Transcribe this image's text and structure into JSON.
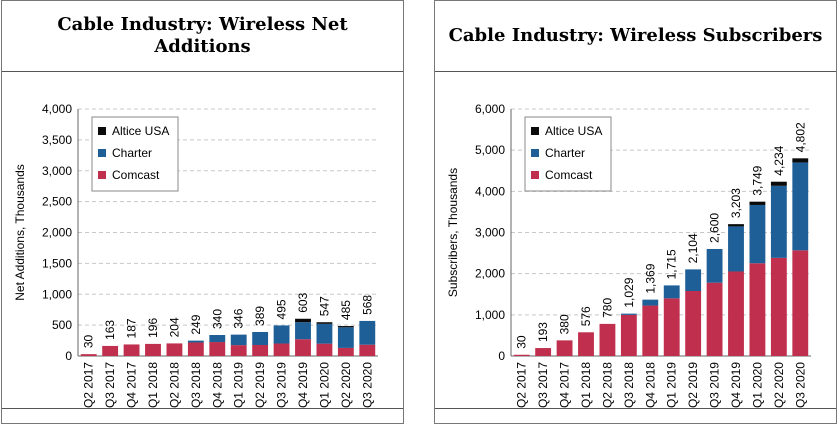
{
  "colors": {
    "altice": "#0a0a0a",
    "charter": "#1f5f97",
    "comcast": "#c0304e",
    "grid": "#c8c8c8"
  },
  "chart_data": [
    {
      "type": "bar",
      "stacked": true,
      "title": "Cable Industry: Wireless Net Additions",
      "ylabel": "Net Additions, Thousands",
      "ylim": [
        0,
        4000
      ],
      "yticks": [
        "0",
        "500",
        "1,000",
        "1,500",
        "2,000",
        "2,500",
        "3,000",
        "3,500",
        "4,000"
      ],
      "grid": true,
      "legend_position": "top-left",
      "categories": [
        "Q2 2017",
        "Q3 2017",
        "Q4 2017",
        "Q1 2018",
        "Q2 2018",
        "Q3 2018",
        "Q4 2018",
        "Q1 2019",
        "Q2 2019",
        "Q3 2019",
        "Q4 2019",
        "Q1 2020",
        "Q2 2020",
        "Q3 2020"
      ],
      "series": [
        {
          "name": "Comcast",
          "values": [
            30,
            163,
            187,
            196,
            204,
            219,
            226,
            176,
            178,
            202,
            272,
            200,
            131,
            183
          ]
        },
        {
          "name": "Charter",
          "values": [
            0,
            0,
            0,
            0,
            0,
            30,
            114,
            170,
            211,
            293,
            276,
            321,
            334,
            385
          ]
        },
        {
          "name": "Altice USA",
          "values": [
            0,
            0,
            0,
            0,
            0,
            0,
            0,
            0,
            0,
            0,
            55,
            26,
            20,
            0
          ]
        }
      ],
      "totals": [
        "30",
        "163",
        "187",
        "196",
        "204",
        "249",
        "340",
        "346",
        "389",
        "495",
        "603",
        "547",
        "485",
        "568"
      ]
    },
    {
      "type": "bar",
      "stacked": true,
      "title": "Cable Industry: Wireless Subscribers",
      "ylabel": "Subscribers, Thousands",
      "ylim": [
        0,
        6000
      ],
      "yticks": [
        "0",
        "1,000",
        "2,000",
        "3,000",
        "4,000",
        "5,000",
        "6,000"
      ],
      "grid": true,
      "legend_position": "top-left",
      "categories": [
        "Q2 2017",
        "Q3 2017",
        "Q4 2017",
        "Q1 2018",
        "Q2 2018",
        "Q3 2018",
        "Q4 2018",
        "Q1 2019",
        "Q2 2019",
        "Q3 2019",
        "Q4 2019",
        "Q1 2020",
        "Q2 2020",
        "Q3 2020"
      ],
      "series": [
        {
          "name": "Comcast",
          "values": [
            30,
            193,
            380,
            576,
            780,
            999,
            1225,
            1401,
            1579,
            1781,
            2053,
            2253,
            2384,
            2567
          ]
        },
        {
          "name": "Charter",
          "values": [
            0,
            0,
            0,
            0,
            0,
            30,
            144,
            314,
            525,
            819,
            1095,
            1416,
            1750,
            2135
          ]
        },
        {
          "name": "Altice USA",
          "values": [
            0,
            0,
            0,
            0,
            0,
            0,
            0,
            0,
            0,
            0,
            55,
            80,
            100,
            100
          ]
        }
      ],
      "totals": [
        "30",
        "193",
        "380",
        "576",
        "780",
        "1,029",
        "1,369",
        "1,715",
        "2,104",
        "2,600",
        "3,203",
        "3,749",
        "4,234",
        "4,802"
      ]
    }
  ]
}
